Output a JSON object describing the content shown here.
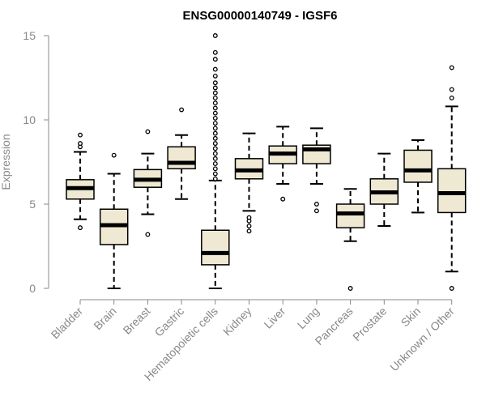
{
  "chart_data": {
    "type": "boxplot",
    "title": "ENSG00000140749 - IGSF6",
    "xlabel": "",
    "ylabel": "Expression",
    "ylim": [
      0,
      15
    ],
    "yticks": [
      0,
      5,
      10,
      15
    ],
    "grid": false,
    "legend": "none",
    "box_fill": "#efe8d2",
    "categories": [
      "Bladder",
      "Brain",
      "Breast",
      "Gastric",
      "Hematopoietic cells",
      "Kidney",
      "Liver",
      "Lung",
      "Pancreas",
      "Prostate",
      "Skin",
      "Unknown / Other"
    ],
    "boxes": [
      {
        "category": "Bladder",
        "whisker_low": 4.1,
        "q1": 5.3,
        "median": 5.95,
        "q3": 6.45,
        "whisker_high": 8.1,
        "outliers": [
          3.6,
          8.4,
          8.6,
          9.1
        ]
      },
      {
        "category": "Brain",
        "whisker_low": 0.0,
        "q1": 2.6,
        "median": 3.75,
        "q3": 4.7,
        "whisker_high": 6.8,
        "outliers": [
          7.9
        ]
      },
      {
        "category": "Breast",
        "whisker_low": 4.4,
        "q1": 6.0,
        "median": 6.45,
        "q3": 7.05,
        "whisker_high": 8.0,
        "outliers": [
          3.2,
          9.3
        ]
      },
      {
        "category": "Gastric",
        "whisker_low": 5.3,
        "q1": 7.1,
        "median": 7.45,
        "q3": 8.4,
        "whisker_high": 9.1,
        "outliers": [
          10.6
        ]
      },
      {
        "category": "Hematopoietic cells",
        "whisker_low": 0.0,
        "q1": 1.4,
        "median": 2.1,
        "q3": 3.45,
        "whisker_high": 6.4,
        "outliers": [
          6.5,
          6.8,
          7.1,
          7.4,
          7.7,
          8.0,
          8.3,
          8.6,
          8.9,
          9.2,
          9.5,
          9.8,
          10.1,
          10.4,
          10.7,
          11.0,
          11.3,
          11.6,
          11.9,
          12.2,
          12.6,
          13.0,
          13.6,
          14.0,
          15.0
        ]
      },
      {
        "category": "Kidney",
        "whisker_low": 4.6,
        "q1": 6.5,
        "median": 7.0,
        "q3": 7.7,
        "whisker_high": 9.2,
        "outliers": [
          3.4,
          3.7,
          4.0,
          4.2
        ]
      },
      {
        "category": "Liver",
        "whisker_low": 6.2,
        "q1": 7.4,
        "median": 8.0,
        "q3": 8.45,
        "whisker_high": 9.6,
        "outliers": [
          5.3
        ]
      },
      {
        "category": "Lung",
        "whisker_low": 6.2,
        "q1": 7.4,
        "median": 8.25,
        "q3": 8.5,
        "whisker_high": 9.5,
        "outliers": [
          4.6,
          5.0
        ]
      },
      {
        "category": "Pancreas",
        "whisker_low": 2.8,
        "q1": 3.6,
        "median": 4.45,
        "q3": 5.0,
        "whisker_high": 5.9,
        "outliers": [
          0.0
        ]
      },
      {
        "category": "Prostate",
        "whisker_low": 3.7,
        "q1": 5.0,
        "median": 5.7,
        "q3": 6.5,
        "whisker_high": 8.0,
        "outliers": []
      },
      {
        "category": "Skin",
        "whisker_low": 4.5,
        "q1": 6.3,
        "median": 7.0,
        "q3": 8.2,
        "whisker_high": 8.8,
        "outliers": []
      },
      {
        "category": "Unknown / Other",
        "whisker_low": 1.0,
        "q1": 4.5,
        "median": 5.65,
        "q3": 7.1,
        "whisker_high": 10.8,
        "outliers": [
          0.0,
          11.3,
          11.8,
          13.1
        ]
      }
    ]
  }
}
